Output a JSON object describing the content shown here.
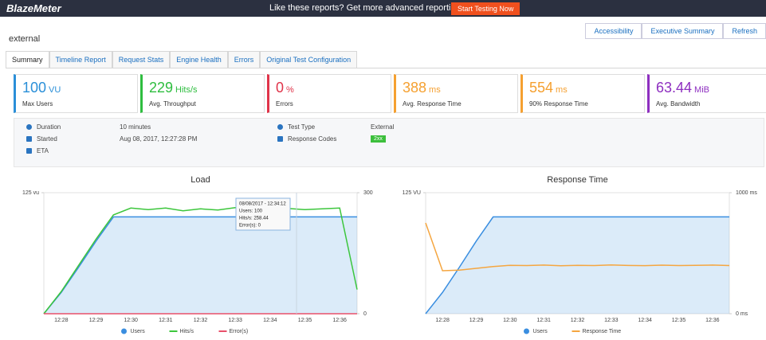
{
  "header": {
    "logo": "BlazeMeter",
    "promo": "Like these reports? Get more advanced reporting features",
    "cta": "Start Testing Now"
  },
  "actions": [
    "Accessibility",
    "Executive Summary",
    "Refresh"
  ],
  "test_name": "external",
  "tabs": [
    "Summary",
    "Timeline Report",
    "Request Stats",
    "Engine Health",
    "Errors",
    "Original Test Configuration"
  ],
  "kpis": [
    {
      "value": "100",
      "unit": "VU",
      "label": "Max Users",
      "color": "#2a8fd8"
    },
    {
      "value": "229",
      "unit": "Hits/s",
      "label": "Avg. Throughput",
      "color": "#2ebd3f"
    },
    {
      "value": "0",
      "unit": "%",
      "label": "Errors",
      "color": "#e0344a"
    },
    {
      "value": "388",
      "unit": "ms",
      "label": "Avg. Response Time",
      "color": "#f5a030"
    },
    {
      "value": "554",
      "unit": "ms",
      "label": "90% Response Time",
      "color": "#f5a030"
    },
    {
      "value": "63.44",
      "unit": "MiB",
      "label": "Avg. Bandwidth",
      "color": "#8e2fc0"
    }
  ],
  "info": {
    "left": [
      {
        "label": "Duration",
        "value": "10 minutes"
      },
      {
        "label": "Started",
        "value": "Aug 08, 2017, 12:27:28 PM"
      },
      {
        "label": "ETA"
      }
    ],
    "right": [
      {
        "label": "Test Type",
        "value": "External"
      },
      {
        "label": "Response Codes",
        "value": "2xx"
      }
    ]
  },
  "chart_data": [
    {
      "type": "line",
      "title": "Load",
      "categories": [
        null,
        "12:28",
        null,
        "12:29",
        null,
        "12:30",
        null,
        "12:31",
        null,
        "12:32",
        null,
        "12:33",
        null,
        "12:34",
        null,
        "12:35",
        null,
        "12:36",
        null
      ],
      "ylim": [
        0,
        125
      ],
      "yticks": [
        {
          "value": 125,
          "label": "125 vu"
        }
      ],
      "y2lim": [
        0,
        300
      ],
      "y2ticks": [
        300,
        0
      ],
      "series": [
        {
          "name": "Users",
          "color": "#3a8ee0",
          "area": true,
          "values": [
            0,
            22,
            48,
            75,
            100,
            100,
            100,
            100,
            100,
            100,
            100,
            100,
            100,
            100,
            100,
            100,
            100,
            100,
            100
          ]
        },
        {
          "name": "Hits/s",
          "color": "#3cc63c",
          "axis": "y2",
          "values": [
            0,
            55,
            120,
            185,
            245,
            262,
            258,
            262,
            255,
            260,
            257,
            263,
            258,
            255,
            261,
            258,
            260,
            262,
            60
          ]
        },
        {
          "name": "Error(s)",
          "color": "#e8506a",
          "axis": "y2",
          "values": [
            0,
            0,
            0,
            0,
            0,
            0,
            0,
            0,
            0,
            0,
            0,
            0,
            0,
            0,
            0,
            0,
            0,
            0,
            0
          ]
        }
      ],
      "tooltip": [
        "08/08/2017 - 12:34:12",
        "Users: 100",
        "Hits/s: 258.44",
        "Error(s): 0"
      ]
    },
    {
      "type": "line",
      "title": "Response Time",
      "categories": [
        null,
        "12:28",
        null,
        "12:29",
        null,
        "12:30",
        null,
        "12:31",
        null,
        "12:32",
        null,
        "12:33",
        null,
        "12:34",
        null,
        "12:35",
        null,
        "12:36",
        null
      ],
      "ylim": [
        0,
        125
      ],
      "yticks": [
        {
          "value": 125,
          "label": "125 VU"
        }
      ],
      "y2lim": [
        0,
        1000
      ],
      "y2ticks": [
        {
          "value": 1000,
          "label": "1000 ms"
        },
        {
          "value": 0,
          "label": "0 ms"
        }
      ],
      "series": [
        {
          "name": "Users",
          "color": "#3a8ee0",
          "area": true,
          "values": [
            0,
            22,
            48,
            75,
            100,
            100,
            100,
            100,
            100,
            100,
            100,
            100,
            100,
            100,
            100,
            100,
            100,
            100,
            100
          ]
        },
        {
          "name": "Response Time",
          "color": "#f5a640",
          "axis": "y2",
          "values": [
            750,
            355,
            360,
            375,
            390,
            400,
            398,
            402,
            396,
            400,
            398,
            403,
            399,
            397,
            401,
            398,
            400,
            402,
            398
          ]
        }
      ]
    }
  ]
}
